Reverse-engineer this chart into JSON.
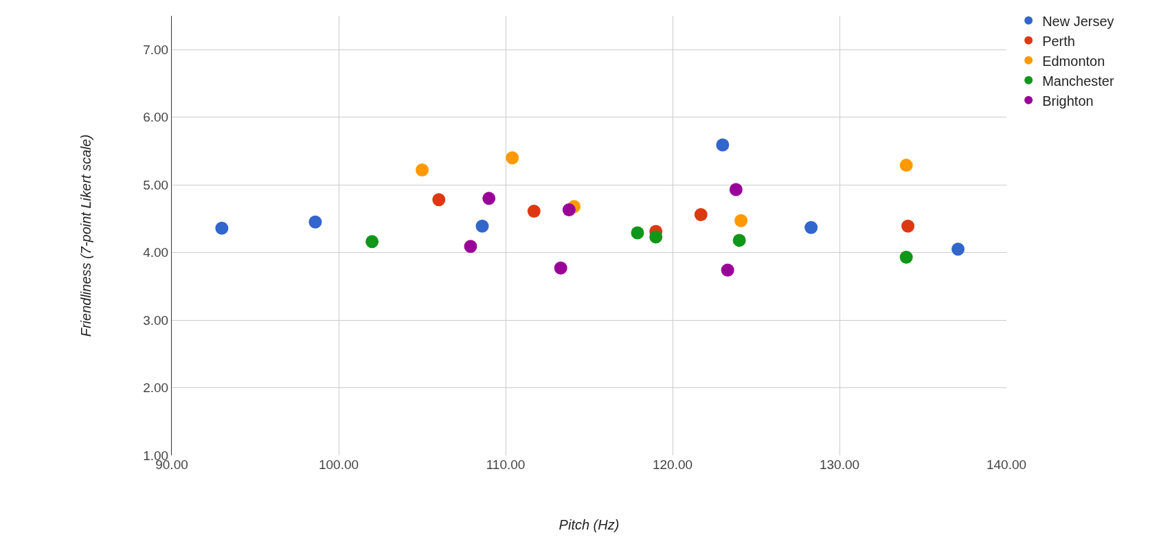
{
  "chart_data": {
    "type": "scatter",
    "xlabel": "Pitch (Hz)",
    "ylabel": "Friendliness (7-point Likert scale)",
    "xlim": [
      90,
      140
    ],
    "xticks": [
      {
        "value": 90,
        "label": "90.00"
      },
      {
        "value": 100,
        "label": "100.00"
      },
      {
        "value": 110,
        "label": "110.00"
      },
      {
        "value": 120,
        "label": "120.00"
      },
      {
        "value": 130,
        "label": "130.00"
      },
      {
        "value": 140,
        "label": "140.00"
      }
    ],
    "ylim": [
      1,
      7.5
    ],
    "yticks": [
      {
        "value": 1,
        "label": "1.00"
      },
      {
        "value": 2,
        "label": "2.00"
      },
      {
        "value": 3,
        "label": "3.00"
      },
      {
        "value": 4,
        "label": "4.00"
      },
      {
        "value": 5,
        "label": "5.00"
      },
      {
        "value": 6,
        "label": "6.00"
      },
      {
        "value": 7,
        "label": "7.00"
      }
    ],
    "grid": true,
    "legend": "top right",
    "marker": "circle",
    "series": [
      {
        "name": "New Jersey",
        "color": "#3366cc",
        "x": [
          93.0,
          98.6,
          107.8,
          108.6,
          123.0,
          128.3,
          137.1
        ],
        "values": [
          4.36,
          4.45,
          null,
          4.39,
          5.59,
          4.37,
          4.05
        ]
      },
      {
        "name": "Perth",
        "color": "#dc3912",
        "x": [
          106.0,
          111.7,
          119.0,
          121.7,
          124.1,
          134.1
        ],
        "values": [
          4.78,
          4.61,
          4.31,
          4.56,
          null,
          4.39
        ]
      },
      {
        "name": "Edmonton",
        "color": "#ff9900",
        "x": [
          105.0,
          110.4,
          114.1,
          124.1,
          134.0
        ],
        "values": [
          5.22,
          5.4,
          4.68,
          4.47,
          5.29
        ]
      },
      {
        "name": "Manchester",
        "color": "#109618",
        "x": [
          102.0,
          117.9,
          119.0,
          124.0,
          134.0
        ],
        "values": [
          4.16,
          4.29,
          4.23,
          4.18,
          3.93
        ]
      },
      {
        "name": "Brighton",
        "color": "#990099",
        "x": [
          107.9,
          109.0,
          113.8,
          113.3,
          123.8,
          123.3
        ],
        "values": [
          4.09,
          4.8,
          4.63,
          3.77,
          4.93,
          3.74
        ]
      }
    ]
  }
}
